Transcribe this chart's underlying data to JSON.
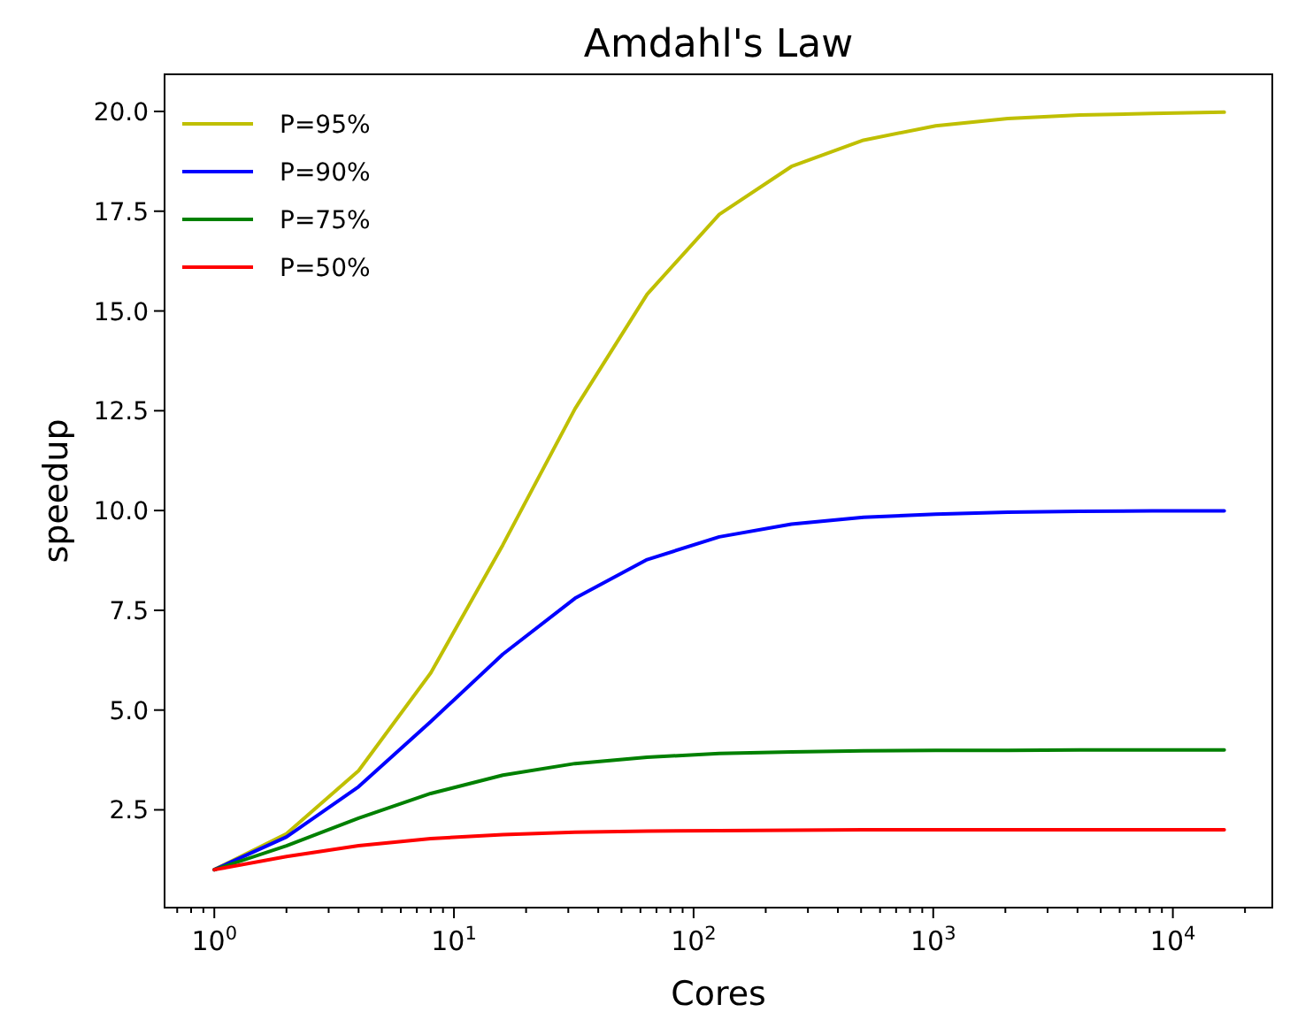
{
  "chart_data": {
    "type": "line",
    "title": "Amdahl's Law",
    "xlabel": "Cores",
    "ylabel": "speedup",
    "log": "x",
    "x": [
      1,
      2,
      4,
      8,
      16,
      32,
      64,
      128,
      256,
      512,
      1024,
      2048,
      4096,
      8192,
      16384
    ],
    "series": [
      {
        "name": "P=95%",
        "color": "#bfbf00",
        "values": [
          1,
          1.9,
          3.48,
          5.93,
          9.14,
          12.55,
          15.42,
          17.42,
          18.62,
          19.28,
          19.64,
          19.82,
          19.91,
          19.95,
          19.98
        ]
      },
      {
        "name": "P=90%",
        "color": "#0000ff",
        "values": [
          1,
          1.82,
          3.08,
          4.71,
          6.4,
          7.8,
          8.77,
          9.34,
          9.66,
          9.83,
          9.91,
          9.96,
          9.98,
          9.99,
          9.99
        ]
      },
      {
        "name": "P=75%",
        "color": "#008000",
        "values": [
          1,
          1.6,
          2.29,
          2.91,
          3.37,
          3.66,
          3.82,
          3.91,
          3.95,
          3.98,
          3.99,
          3.99,
          4.0,
          4.0,
          4.0
        ]
      },
      {
        "name": "P=50%",
        "color": "#ff0000",
        "values": [
          1,
          1.33,
          1.6,
          1.78,
          1.88,
          1.94,
          1.97,
          1.98,
          1.99,
          2.0,
          2.0,
          2.0,
          2.0,
          2.0,
          2.0
        ]
      }
    ],
    "xlim": [
      0.62,
      26000
    ],
    "ylim": [
      0.05,
      20.93
    ],
    "xticks": [
      {
        "value": 0.7,
        "label": null
      },
      {
        "value": 0.8,
        "label": null
      },
      {
        "value": 0.9,
        "label": null
      },
      {
        "value": 1,
        "label": "10$^{0}$"
      },
      {
        "value": 2,
        "label": null
      },
      {
        "value": 3,
        "label": null
      },
      {
        "value": 4,
        "label": null
      },
      {
        "value": 5,
        "label": null
      },
      {
        "value": 6,
        "label": null
      },
      {
        "value": 7,
        "label": null
      },
      {
        "value": 8,
        "label": null
      },
      {
        "value": 9,
        "label": null
      },
      {
        "value": 10,
        "label": "10$^{1}$"
      },
      {
        "value": 20,
        "label": null
      },
      {
        "value": 30,
        "label": null
      },
      {
        "value": 40,
        "label": null
      },
      {
        "value": 50,
        "label": null
      },
      {
        "value": 60,
        "label": null
      },
      {
        "value": 70,
        "label": null
      },
      {
        "value": 80,
        "label": null
      },
      {
        "value": 90,
        "label": null
      },
      {
        "value": 100,
        "label": "10$^{2}$"
      },
      {
        "value": 200,
        "label": null
      },
      {
        "value": 300,
        "label": null
      },
      {
        "value": 400,
        "label": null
      },
      {
        "value": 500,
        "label": null
      },
      {
        "value": 600,
        "label": null
      },
      {
        "value": 700,
        "label": null
      },
      {
        "value": 800,
        "label": null
      },
      {
        "value": 900,
        "label": null
      },
      {
        "value": 1000,
        "label": "10$^{3}$"
      },
      {
        "value": 2000,
        "label": null
      },
      {
        "value": 3000,
        "label": null
      },
      {
        "value": 4000,
        "label": null
      },
      {
        "value": 5000,
        "label": null
      },
      {
        "value": 6000,
        "label": null
      },
      {
        "value": 7000,
        "label": null
      },
      {
        "value": 8000,
        "label": null
      },
      {
        "value": 9000,
        "label": null
      },
      {
        "value": 10000,
        "label": "10$^{4}$"
      },
      {
        "value": 20000,
        "label": null
      }
    ],
    "yticks": [
      {
        "value": 2.5,
        "label": "2.5"
      },
      {
        "value": 5,
        "label": "5.0"
      },
      {
        "value": 7.5,
        "label": "7.5"
      },
      {
        "value": 10,
        "label": "10.0"
      },
      {
        "value": 12.5,
        "label": "12.5"
      },
      {
        "value": 15,
        "label": "15.0"
      },
      {
        "value": 17.5,
        "label": "17.5"
      },
      {
        "value": 20,
        "label": "20.0"
      }
    ],
    "legend": "top left",
    "grid": false,
    "line_style": "solid",
    "marker": "none"
  }
}
